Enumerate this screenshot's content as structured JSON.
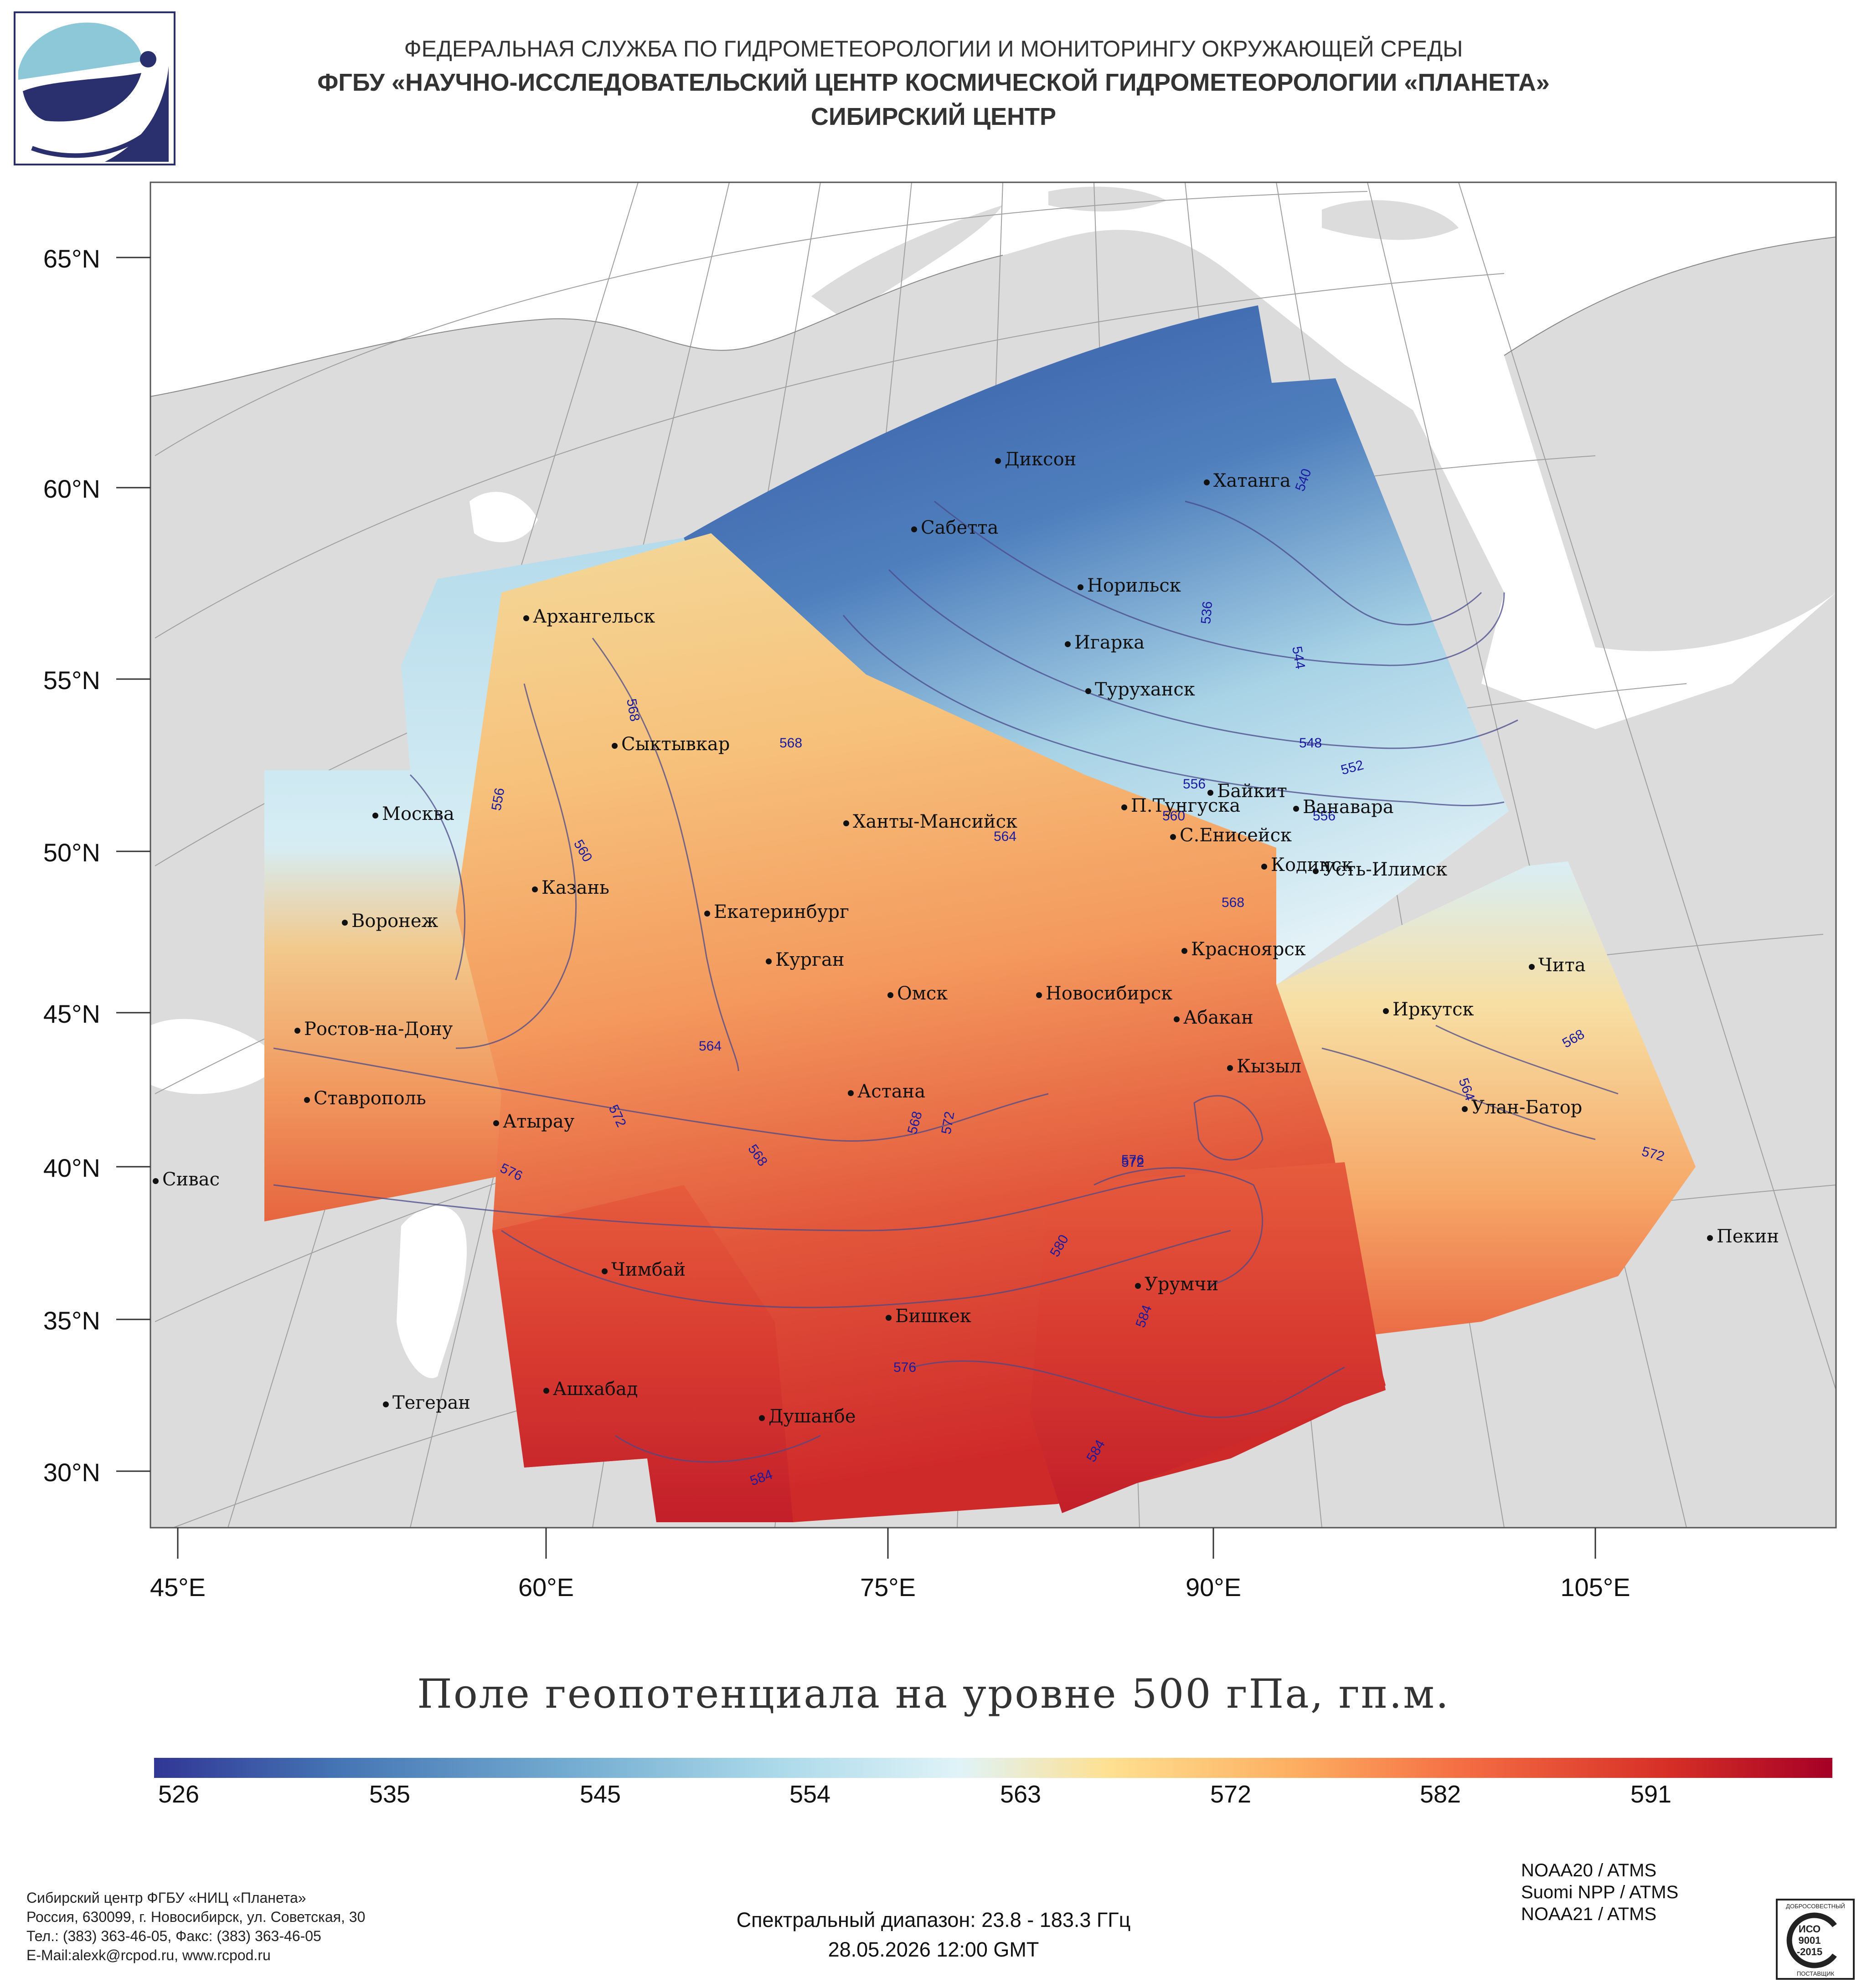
{
  "header": {
    "line1": "ФЕДЕРАЛЬНАЯ СЛУЖБА ПО ГИДРОМЕТЕОРОЛОГИИ И МОНИТОРИНГУ ОКРУЖАЮЩЕЙ СРЕДЫ",
    "line2": "ФГБУ «НАУЧНО-ИССЛЕДОВАТЕЛЬСКИЙ ЦЕНТР КОСМИЧЕСКОЙ ГИДРОМЕТЕОРОЛОГИИ «ПЛАНЕТА»",
    "line3": "СИБИРСКИЙ ЦЕНТР"
  },
  "map": {
    "lat_labels": [
      "65°N",
      "60°N",
      "55°N",
      "50°N",
      "45°N",
      "40°N",
      "35°N",
      "30°N"
    ],
    "lon_labels": [
      "45°E",
      "60°E",
      "75°E",
      "90°E",
      "105°E"
    ],
    "cities": [
      "Диксон",
      "Хатанга",
      "Сабетта",
      "Норильск",
      "Архангельск",
      "Игарка",
      "Туруханск",
      "Сыктывкар",
      "Байкит",
      "П.Тунгуска",
      "Ванавара",
      "Москва",
      "Ханты-Мансийск",
      "С.Енисейск",
      "Казань",
      "Кодинск",
      "Усть-Илимск",
      "Екатеринбург",
      "Воронеж",
      "Красноярск",
      "Курган",
      "Чита",
      "Омск",
      "Новосибирск",
      "Иркутск",
      "Ростов-на-Дону",
      "Абакан",
      "Кызыл",
      "Астана",
      "Ставрополь",
      "Улан-Батор",
      "Атырау",
      "Сивас",
      "Пекин",
      "Урумчи",
      "Чимбай",
      "Бишкек",
      "Ашхабад",
      "Душанбе",
      "Тегеран"
    ],
    "contour_labels": [
      "540",
      "536",
      "544",
      "548",
      "552",
      "556",
      "556",
      "560",
      "564",
      "568",
      "568",
      "568",
      "556",
      "560",
      "564",
      "568",
      "572",
      "576",
      "580",
      "584",
      "584",
      "572",
      "576",
      "564",
      "568",
      "572",
      "568",
      "572",
      "576",
      "584"
    ],
    "colors": {
      "land": "#dcdcdc",
      "ocean": "#ffffff",
      "graticule": "#a0a0a0",
      "contour": "#4a4a8a",
      "contour_label": "#1a1aa0"
    }
  },
  "title": "Поле геопотенциала на уровне 500 гПа, гп.м.",
  "colorbar": {
    "ticks": [
      "526",
      "535",
      "545",
      "554",
      "563",
      "572",
      "582",
      "591"
    ],
    "range": [
      526,
      600
    ],
    "colors": [
      "#313695",
      "#4575b4",
      "#74add1",
      "#abd9e9",
      "#e0f3f8",
      "#fee090",
      "#fdae61",
      "#f46d43",
      "#d73027",
      "#a50026"
    ]
  },
  "footer": {
    "org_line1": "Сибирский центр ФГБУ «НИЦ «Планета»",
    "org_line2": "Россия, 630099, г. Новосибирск, ул. Советская, 30",
    "org_line3": "Тел.: (383) 363-46-05, Факс: (383) 363-46-05",
    "org_line4": "E-Mail:alexk@rcpod.ru, www.rcpod.ru",
    "spectral": "Спектральный диапазон: 23.8 - 183.3 ГГц",
    "datetime": "28.05.2026 12:00 GMT",
    "sensor1": "NOAA20 / ATMS",
    "sensor2": "Suomi NPP / ATMS",
    "sensor3": "NOAA21 / ATMS",
    "iso_top": "ДОБРОСОВЕСТНЫЙ",
    "iso_mid1": "ИСО",
    "iso_mid2": "9001",
    "iso_mid3": "-2015",
    "iso_bottom": "ПОСТАВЩИК"
  }
}
